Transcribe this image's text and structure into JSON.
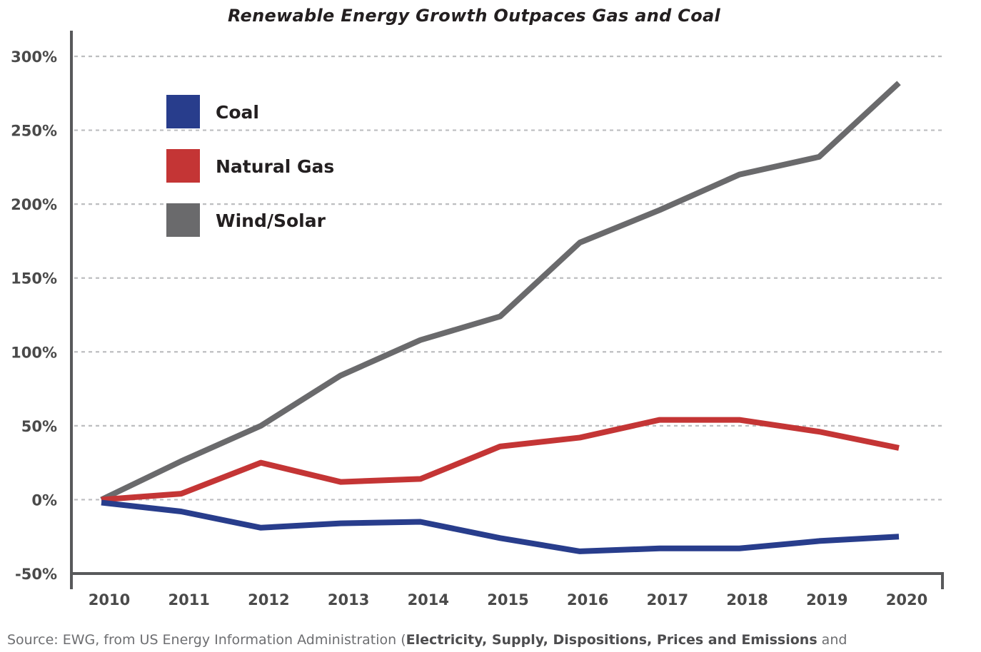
{
  "chart_data": {
    "type": "line",
    "title": "Renewable Energy Growth Outpaces Gas and Coal",
    "xlabel": "",
    "ylabel": "",
    "categories": [
      "2010",
      "2011",
      "2012",
      "2013",
      "2014",
      "2015",
      "2016",
      "2017",
      "2018",
      "2019",
      "2020"
    ],
    "y_ticks": [
      "300%",
      "250%",
      "200%",
      "150%",
      "100%",
      "50%",
      "0%",
      "-50%"
    ],
    "ylim": [
      -50,
      300
    ],
    "y_unit": "%",
    "grid": "horizontal dashed",
    "legend_position": "top-left",
    "series": [
      {
        "name": "Coal",
        "color": "#283d8c",
        "values": [
          -2,
          -8,
          -19,
          -16,
          -15,
          -26,
          -35,
          -33,
          -33,
          -28,
          -25
        ]
      },
      {
        "name": "Natural Gas",
        "color": "#c43535",
        "values": [
          0,
          4,
          25,
          12,
          14,
          36,
          42,
          54,
          54,
          46,
          35
        ]
      },
      {
        "name": "Wind/Solar",
        "color": "#6a6a6c",
        "values": [
          0,
          26,
          50,
          84,
          108,
          124,
          174,
          196,
          220,
          232,
          282
        ]
      }
    ]
  },
  "source": {
    "prefix": "Source: EWG, from US Energy Information Administration (",
    "bold": "Electricity, Supply, Dispositions, Prices and Emissions",
    "suffix": " and"
  }
}
